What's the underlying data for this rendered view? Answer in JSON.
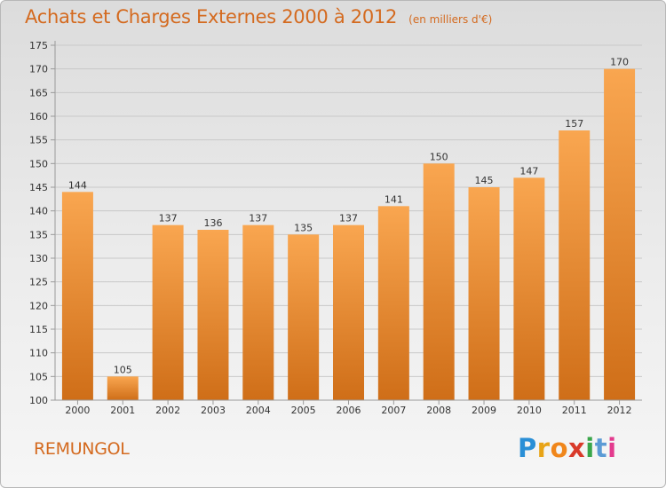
{
  "header": {
    "title": "Achats et Charges Externes 2000 à 2012",
    "unit": "(en milliers d'€)"
  },
  "footer": {
    "town": "REMUNGOL",
    "logo_letters": [
      "P",
      "r",
      "o",
      "x",
      "i",
      "t",
      "i"
    ],
    "logo_colors": [
      "#2a8fd6",
      "#e8a417",
      "#f0861b",
      "#d93a2a",
      "#3aa64a",
      "#5b9bd5",
      "#e33b8e"
    ]
  },
  "colors": {
    "bar_top": "#f9a650",
    "bar_bottom": "#cf6e18",
    "axis": "#9a9a9a",
    "grid": "#c8c8c8",
    "text": "#333333"
  },
  "chart_data": {
    "type": "bar",
    "categories": [
      "2000",
      "2001",
      "2002",
      "2003",
      "2004",
      "2005",
      "2006",
      "2007",
      "2008",
      "2009",
      "2010",
      "2011",
      "2012"
    ],
    "values": [
      144,
      105,
      137,
      136,
      137,
      135,
      137,
      141,
      150,
      145,
      147,
      157,
      170
    ],
    "ylim": [
      100,
      175
    ],
    "yticks": [
      100,
      105,
      110,
      115,
      120,
      125,
      130,
      135,
      140,
      145,
      150,
      155,
      160,
      165,
      170,
      175
    ],
    "grid": true,
    "data_labels": true
  }
}
